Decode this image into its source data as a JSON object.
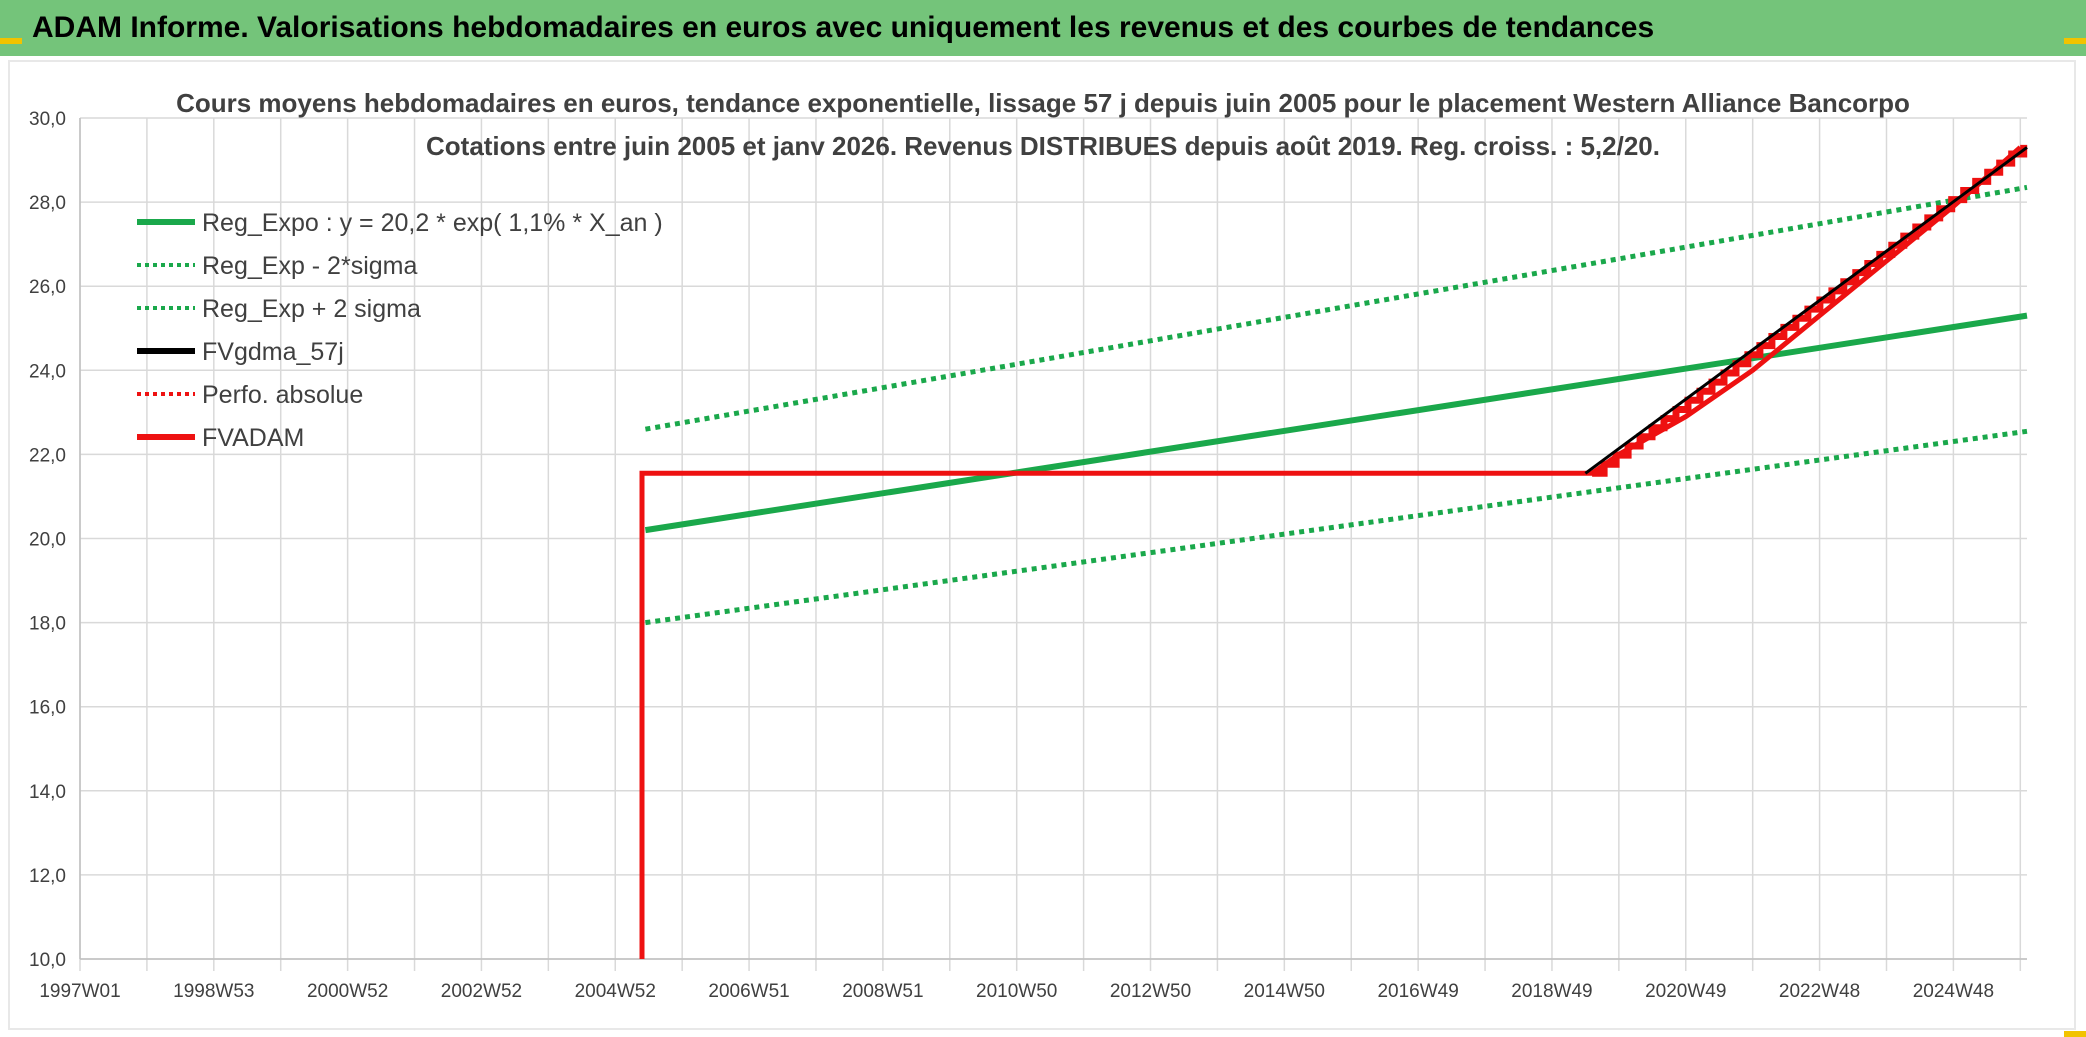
{
  "banner": {
    "title": "ADAM Informe. Valorisations hebdomadaires en euros avec uniquement les revenus et des courbes de tendances"
  },
  "colors": {
    "banner_bg": "#74c47a",
    "green": "#1aa84b",
    "red": "#ee1111",
    "black": "#000000",
    "grid": "#d9d9d9",
    "text": "#404040"
  },
  "chart_data": {
    "type": "line",
    "title": "Cours moyens hebdomadaires en euros, tendance exponentielle, lissage 57 j depuis juin 2005 pour le placement Western Alliance Bancorpo",
    "subtitle": "Cotations entre juin 2005 et janv 2026. Revenus DISTRIBUES depuis août 2019. Reg. croiss. : 5,2/20.",
    "xlabel": "",
    "ylabel": "",
    "ylim": [
      10,
      30
    ],
    "xlim": [
      1997.0,
      2026.1
    ],
    "grid": true,
    "legend_position": "top-left",
    "y_ticks": [
      "10,0",
      "12,0",
      "14,0",
      "16,0",
      "18,0",
      "20,0",
      "22,0",
      "24,0",
      "26,0",
      "28,0",
      "30,0"
    ],
    "x_ticks": [
      {
        "label": "1997W01",
        "x": 1997.0
      },
      {
        "label": "1998W53",
        "x": 1999.0
      },
      {
        "label": "2000W52",
        "x": 2001.0
      },
      {
        "label": "2002W52",
        "x": 2003.0
      },
      {
        "label": "2004W52",
        "x": 2005.0
      },
      {
        "label": "2006W51",
        "x": 2007.0
      },
      {
        "label": "2008W51",
        "x": 2009.0
      },
      {
        "label": "2010W50",
        "x": 2011.0
      },
      {
        "label": "2012W50",
        "x": 2013.0
      },
      {
        "label": "2014W50",
        "x": 2015.0
      },
      {
        "label": "2016W49",
        "x": 2017.0
      },
      {
        "label": "2018W49",
        "x": 2019.0
      },
      {
        "label": "2020W49",
        "x": 2021.0
      },
      {
        "label": "2022W48",
        "x": 2023.0
      },
      {
        "label": "2024W48",
        "x": 2025.0
      }
    ],
    "series": [
      {
        "name": "Reg_Expo : y = 20,2 * exp( 1,1% *  X_an )",
        "style": "solid",
        "color": "#1aa84b",
        "x": [
          2005.45,
          2026.1
        ],
        "y": [
          20.2,
          25.3
        ]
      },
      {
        "name": "Reg_Exp - 2*sigma",
        "style": "dotted",
        "color": "#1aa84b",
        "x": [
          2005.45,
          2026.1
        ],
        "y": [
          18.0,
          22.55
        ]
      },
      {
        "name": "Reg_Exp + 2 sigma",
        "style": "dotted",
        "color": "#1aa84b",
        "x": [
          2005.45,
          2026.1
        ],
        "y": [
          22.6,
          28.35
        ]
      },
      {
        "name": "FVgdma_57j",
        "style": "solid",
        "color": "#000000",
        "x": [
          2019.5,
          2026.1
        ],
        "y": [
          21.55,
          29.3
        ]
      },
      {
        "name": "Perfo. absolue",
        "style": "dotted",
        "color": "#ee1111",
        "x": [],
        "y": []
      },
      {
        "name": "FVADAM",
        "style": "solid",
        "color": "#ee1111",
        "x": [
          2005.4,
          2005.4,
          2019.6,
          2020.0,
          2021.0,
          2022.0,
          2023.0,
          2024.0,
          2025.0,
          2026.0
        ],
        "y": [
          10.0,
          21.55,
          21.55,
          22.0,
          22.9,
          24.0,
          25.3,
          26.6,
          27.9,
          29.3
        ]
      }
    ]
  }
}
